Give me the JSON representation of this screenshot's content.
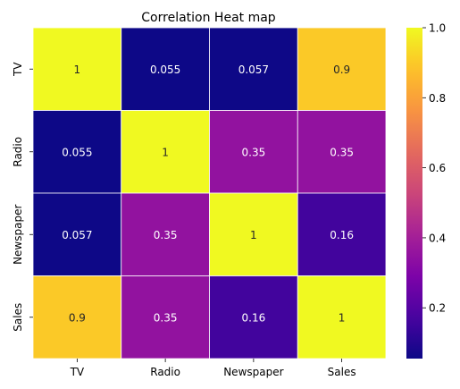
{
  "chart_data": {
    "type": "heatmap",
    "title": "Correlation Heat map",
    "xlabel": "",
    "ylabel": "",
    "x_categories": [
      "TV",
      "Radio",
      "Newspaper",
      "Sales"
    ],
    "y_categories": [
      "TV",
      "Radio",
      "Newspaper",
      "Sales"
    ],
    "values": [
      [
        1,
        0.055,
        0.057,
        0.9
      ],
      [
        0.055,
        1,
        0.35,
        0.35
      ],
      [
        0.057,
        0.35,
        1,
        0.16
      ],
      [
        0.9,
        0.35,
        0.16,
        1
      ]
    ],
    "cell_labels": [
      [
        "1",
        "0.055",
        "0.057",
        "0.9"
      ],
      [
        "0.055",
        "1",
        "0.35",
        "0.35"
      ],
      [
        "0.057",
        "0.35",
        "1",
        "0.16"
      ],
      [
        "0.9",
        "0.35",
        "0.16",
        "1"
      ]
    ],
    "colormap": "plasma",
    "colorbar_range": [
      0.055,
      1.0
    ],
    "colorbar_ticks": [
      0.2,
      0.4,
      0.6,
      0.8,
      1.0
    ],
    "colorbar_tick_labels": [
      "0.2",
      "0.4",
      "0.6",
      "0.8",
      "1.0"
    ],
    "cell_line_color": "#ffffff",
    "grid": false,
    "legend": "colorbar-right"
  }
}
